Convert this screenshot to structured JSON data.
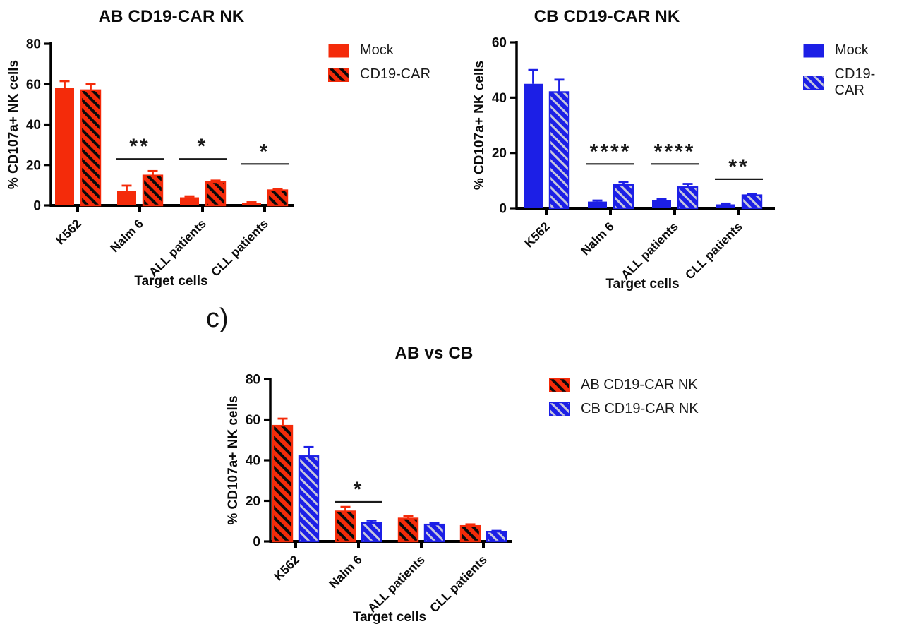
{
  "page": {
    "panel_label": "c)",
    "background": "#ffffff"
  },
  "colors": {
    "red": "#F42B0A",
    "blue": "#1C1FE6",
    "red_hatch_stroke": "#0a0a0a",
    "blue_hatch_stroke": "#C8C8DC",
    "axis": "#000000",
    "significance": "#1a1a1a"
  },
  "chart_data": [
    {
      "id": "chart-ab",
      "type": "bar",
      "title": "AB CD19-CAR NK",
      "xlabel": "Target cells",
      "ylabel": "% CD107a+ NK cells",
      "ylim": [
        0,
        80
      ],
      "yticks": [
        0,
        20,
        40,
        60,
        80
      ],
      "grid": false,
      "legend_position": "right",
      "categories": [
        "K562",
        "Nalm 6",
        "ALL patients",
        "CLL patients"
      ],
      "series": [
        {
          "name": "Mock",
          "style": "solid-red",
          "values": [
            58,
            7,
            4,
            1.3
          ],
          "errors": [
            3.5,
            2.8,
            0.5,
            0.3
          ]
        },
        {
          "name": "CD19-CAR",
          "style": "hatch-red",
          "values": [
            57,
            14.8,
            11.5,
            7.5
          ],
          "errors": [
            3.2,
            2.2,
            0.8,
            0.7
          ]
        }
      ],
      "significance": [
        {
          "category": "Nalm 6",
          "label": "**",
          "line_y": 23
        },
        {
          "category": "ALL patients",
          "label": "*",
          "line_y": 23
        },
        {
          "category": "CLL patients",
          "label": "*",
          "line_y": 20.5
        }
      ],
      "legend": [
        {
          "label": "Mock",
          "style": "solid-red"
        },
        {
          "label": "CD19-CAR",
          "style": "hatch-red"
        }
      ]
    },
    {
      "id": "chart-cb",
      "type": "bar",
      "title": "CB CD19-CAR NK",
      "xlabel": "Target cells",
      "ylabel": "% CD107a+ NK cells",
      "ylim": [
        0,
        60
      ],
      "yticks": [
        0,
        20,
        40,
        60
      ],
      "grid": false,
      "legend_position": "right",
      "categories": [
        "K562",
        "Nalm 6",
        "ALL patients",
        "CLL patients"
      ],
      "series": [
        {
          "name": "Mock",
          "style": "solid-blue",
          "values": [
            45,
            2.4,
            2.9,
            1.4
          ],
          "errors": [
            5,
            0.4,
            0.5,
            0.3
          ]
        },
        {
          "name": "CD19-CAR",
          "style": "hatch-blue",
          "values": [
            42,
            8.5,
            7.6,
            4.7
          ],
          "errors": [
            4.5,
            1.0,
            1.2,
            0.4
          ]
        }
      ],
      "significance": [
        {
          "category": "Nalm 6",
          "label": "****",
          "line_y": 16
        },
        {
          "category": "ALL patients",
          "label": "****",
          "line_y": 16
        },
        {
          "category": "CLL patients",
          "label": "**",
          "line_y": 10.5
        }
      ],
      "legend": [
        {
          "label": "Mock",
          "style": "solid-blue"
        },
        {
          "label": "CD19-CAR",
          "style": "hatch-blue"
        }
      ]
    },
    {
      "id": "chart-abcb",
      "type": "bar",
      "title": "AB vs CB",
      "xlabel": "Target cells",
      "ylabel": "% CD107a+ NK cells",
      "ylim": [
        0,
        80
      ],
      "yticks": [
        0,
        20,
        40,
        60,
        80
      ],
      "grid": false,
      "legend_position": "right",
      "categories": [
        "K562",
        "Nalm 6",
        "ALL patients",
        "CLL patients"
      ],
      "series": [
        {
          "name": "AB CD19-CAR NK",
          "style": "hatch-red",
          "values": [
            57,
            14.8,
            11.3,
            7.6
          ],
          "errors": [
            3.5,
            2.2,
            1.2,
            0.8
          ]
        },
        {
          "name": "CB CD19-CAR NK",
          "style": "hatch-blue",
          "values": [
            42,
            9.0,
            8.3,
            4.8
          ],
          "errors": [
            4.5,
            1.3,
            0.8,
            0.4
          ]
        }
      ],
      "significance": [
        {
          "category": "Nalm 6",
          "label": "*",
          "line_y": 19.5
        }
      ],
      "legend": [
        {
          "label": "AB CD19-CAR NK",
          "style": "hatch-red"
        },
        {
          "label": "CB CD19-CAR NK",
          "style": "hatch-blue"
        }
      ]
    }
  ]
}
